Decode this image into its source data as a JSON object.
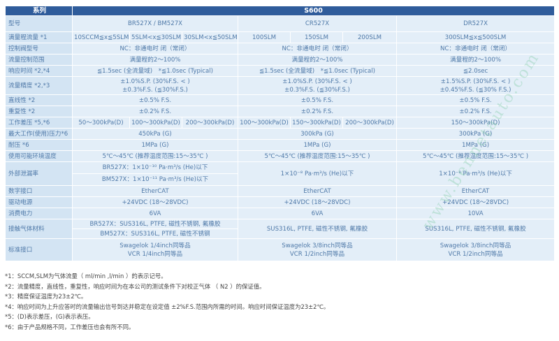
{
  "colors": {
    "header_bg": "#2f5c9b",
    "label_bg": "#d3e4f3",
    "cell_bg": "#e3eef8",
    "text": "#4f79a8"
  },
  "table": {
    "rows": [
      {
        "cls": "hdr",
        "h": 14,
        "cells": [
          {
            "t": "系列",
            "lbl": true
          },
          {
            "t": "S600",
            "span": 7
          }
        ]
      },
      {
        "h": 23,
        "cells": [
          {
            "t": "型号",
            "lbl": true
          },
          {
            "t": "BR527X / BM527X",
            "span": 3
          },
          {
            "t": "CR527X",
            "span": 3
          },
          {
            "t": "DR527X"
          }
        ]
      },
      {
        "h": 16,
        "cells": [
          {
            "t": "满量程流量 *1",
            "lbl": true
          },
          {
            "t": "10SCCM≦x≦5SLM"
          },
          {
            "t": "5SLM<x≦30SLM"
          },
          {
            "t": "30SLM<x≦50SLM"
          },
          {
            "t": "100SLM"
          },
          {
            "t": "150SLM"
          },
          {
            "t": "200SLM"
          },
          {
            "t": "300SLM≦x≦500SLM"
          }
        ]
      },
      {
        "h": 16,
        "cells": [
          {
            "t": "控制阀型号",
            "lbl": true
          },
          {
            "t": "NC：非通电时 闭（常闭）",
            "span": 3
          },
          {
            "t": "NC：非通电时 闭（常闭）",
            "span": 3
          },
          {
            "t": "NC：非通电时 闭（常闭）"
          }
        ]
      },
      {
        "h": 16,
        "cells": [
          {
            "t": "流量控制范围",
            "lbl": true
          },
          {
            "t": "满量程的2～100%",
            "span": 3
          },
          {
            "t": "满量程的2～100%",
            "span": 3
          },
          {
            "t": "满量程的2～100%"
          }
        ]
      },
      {
        "h": 16,
        "cells": [
          {
            "t": "响应时间 *2,*4",
            "lbl": true
          },
          {
            "t": "≦1.5sec (全流量域)　*≦1.0sec (Typical)",
            "span": 3
          },
          {
            "t": "≦1.5sec (全流量域)　*≦1.0sec (Typical)",
            "span": 3
          },
          {
            "t": "≦2.0sec"
          }
        ]
      },
      {
        "h": 26,
        "cells": [
          {
            "t": "流量精度 *2,*3",
            "lbl": true
          },
          {
            "t": "±1.0%S.P. (30%F.S. < )\n±0.3%F.S. (≦30%F.S.)",
            "span": 3
          },
          {
            "t": "±1.0%S.P. (30%F.S. < )\n±0.3%F.S. (≦30%F.S.)",
            "span": 3
          },
          {
            "t": "±1.5%S.P. (30%F.S. < )\n±0.45%F.S. (≦30% F.S.)"
          }
        ]
      },
      {
        "h": 16,
        "cells": [
          {
            "t": "直线性 *2",
            "lbl": true
          },
          {
            "t": "±0.5% F.S.",
            "span": 3
          },
          {
            "t": "±0.5% F.S.",
            "span": 3
          },
          {
            "t": "±0.5% F.S."
          }
        ]
      },
      {
        "h": 16,
        "cells": [
          {
            "t": "重复性 *2",
            "lbl": true
          },
          {
            "t": "±0.2% F.S.",
            "span": 3
          },
          {
            "t": "±0.2% F.S.",
            "span": 3
          },
          {
            "t": "±0.2% F.S."
          }
        ]
      },
      {
        "h": 16,
        "cells": [
          {
            "t": "工作差压 *5,*6",
            "lbl": true
          },
          {
            "t": "50～300kPa(D)"
          },
          {
            "t": "100～300kPa(D)"
          },
          {
            "t": "200～300kPa(D)"
          },
          {
            "t": "100～300kPa(D)"
          },
          {
            "t": "150～300kPa(D)"
          },
          {
            "t": "200～300kPa(D)"
          },
          {
            "t": "150～300kPa(D)"
          }
        ]
      },
      {
        "h": 16,
        "cells": [
          {
            "t": "最大工作(使用)压力*6",
            "lbl": true
          },
          {
            "t": "450kPa (G)",
            "span": 3
          },
          {
            "t": "300kPa (G)",
            "span": 3
          },
          {
            "t": "300kPa (G)"
          }
        ]
      },
      {
        "h": 16,
        "cells": [
          {
            "t": "耐压 *6",
            "lbl": true
          },
          {
            "t": "1MPa (G)",
            "span": 3
          },
          {
            "t": "1MPa (G)",
            "span": 3
          },
          {
            "t": "1MPa (G)"
          }
        ]
      },
      {
        "h": 16,
        "cells": [
          {
            "t": "使用可能环境温度",
            "lbl": true
          },
          {
            "t": "5℃～45℃ (推荐温度范围:15～35℃ )",
            "span": 3
          },
          {
            "t": "5℃～45℃ (推荐温度范围:15～35℃ )",
            "span": 3
          },
          {
            "t": "5℃～45℃ (推荐温度范围:15～35℃ )"
          }
        ]
      },
      {
        "h": 17,
        "cells": [
          {
            "t": "外部泄漏率",
            "lbl": true,
            "rows": 2
          },
          {
            "t": "BR527X：1×10⁻¹⁰ Pa·m³/s (He)以下",
            "span": 3
          },
          {
            "t": "1×10⁻⁸ Pa·m³/s (He)以下",
            "span": 3,
            "rows": 2
          },
          {
            "t": "1×10⁻⁸ Pa·m³/s (He)以下",
            "rows": 2
          }
        ]
      },
      {
        "h": 17,
        "cells": [
          {
            "t": "BM527X：1×10⁻¹¹ Pa·m³/s (He)以下",
            "span": 3
          }
        ]
      },
      {
        "h": 16,
        "cells": [
          {
            "t": "数字接口",
            "lbl": true
          },
          {
            "t": "EtherCAT",
            "span": 3
          },
          {
            "t": "EtherCAT",
            "span": 3
          },
          {
            "t": "EtherCAT"
          }
        ]
      },
      {
        "h": 16,
        "cells": [
          {
            "t": "驱动电源",
            "lbl": true
          },
          {
            "t": "+24VDC (18～28VDC)",
            "span": 3
          },
          {
            "t": "+24VDC (18～28VDC)",
            "span": 3
          },
          {
            "t": "+24VDC (18～28VDC)"
          }
        ]
      },
      {
        "h": 16,
        "cells": [
          {
            "t": "消费电力",
            "lbl": true
          },
          {
            "t": "6VA",
            "span": 3
          },
          {
            "t": "6VA",
            "span": 3
          },
          {
            "t": "10VA"
          }
        ]
      },
      {
        "h": 14,
        "cells": [
          {
            "t": "接触气体材料",
            "lbl": true,
            "rows": 2
          },
          {
            "t": "BR527X：SUS316L, PTFE, 磁性不锈钢, 氟橡胶",
            "span": 3
          },
          {
            "t": "SUS316L, PTFE, 磁性不锈钢, 氟橡胶",
            "span": 3,
            "rows": 2
          },
          {
            "t": "SUS316L, PTFE, 磁性不锈钢, 氟橡胶",
            "rows": 2
          }
        ]
      },
      {
        "h": 14,
        "cells": [
          {
            "t": "BM527X：SUS316L, PTFE, 磁性不锈钢",
            "span": 3
          }
        ]
      },
      {
        "h": 32,
        "cells": [
          {
            "t": "标准接口",
            "lbl": true
          },
          {
            "t": "Swagelok 1/4inch同等品\nVCR 1/4inch同等品",
            "span": 3
          },
          {
            "t": "Swagelok 3/8inch同等品\nVCR 1/2inch同等品",
            "span": 3
          },
          {
            "t": "Swagelok 3/8inch同等品\nVCR 1/2inch同等品"
          }
        ]
      }
    ]
  },
  "footnotes": [
    "*1：SCCM,SLM为气体流量（ ml/min ,l/min ）的表示记号。",
    "*2：流量精度，直线性，重复性，响应时间为在本公司的测试条件下对校正气体 （ N2 ）的保证值。",
    "*3：精度保证温度为23±2℃。",
    "*4：响应时间为上升应答时的流量输出信号到达并稳定在设定值 ±2%F.S.范围内所需的时间。响应时间保证温度为23±2℃。",
    "*5：(D)表示差压，(G)表示表压。",
    "*6：由于产品规格不同，工作差压也会有所不同。"
  ],
  "watermark": "www.bennetauto.com"
}
